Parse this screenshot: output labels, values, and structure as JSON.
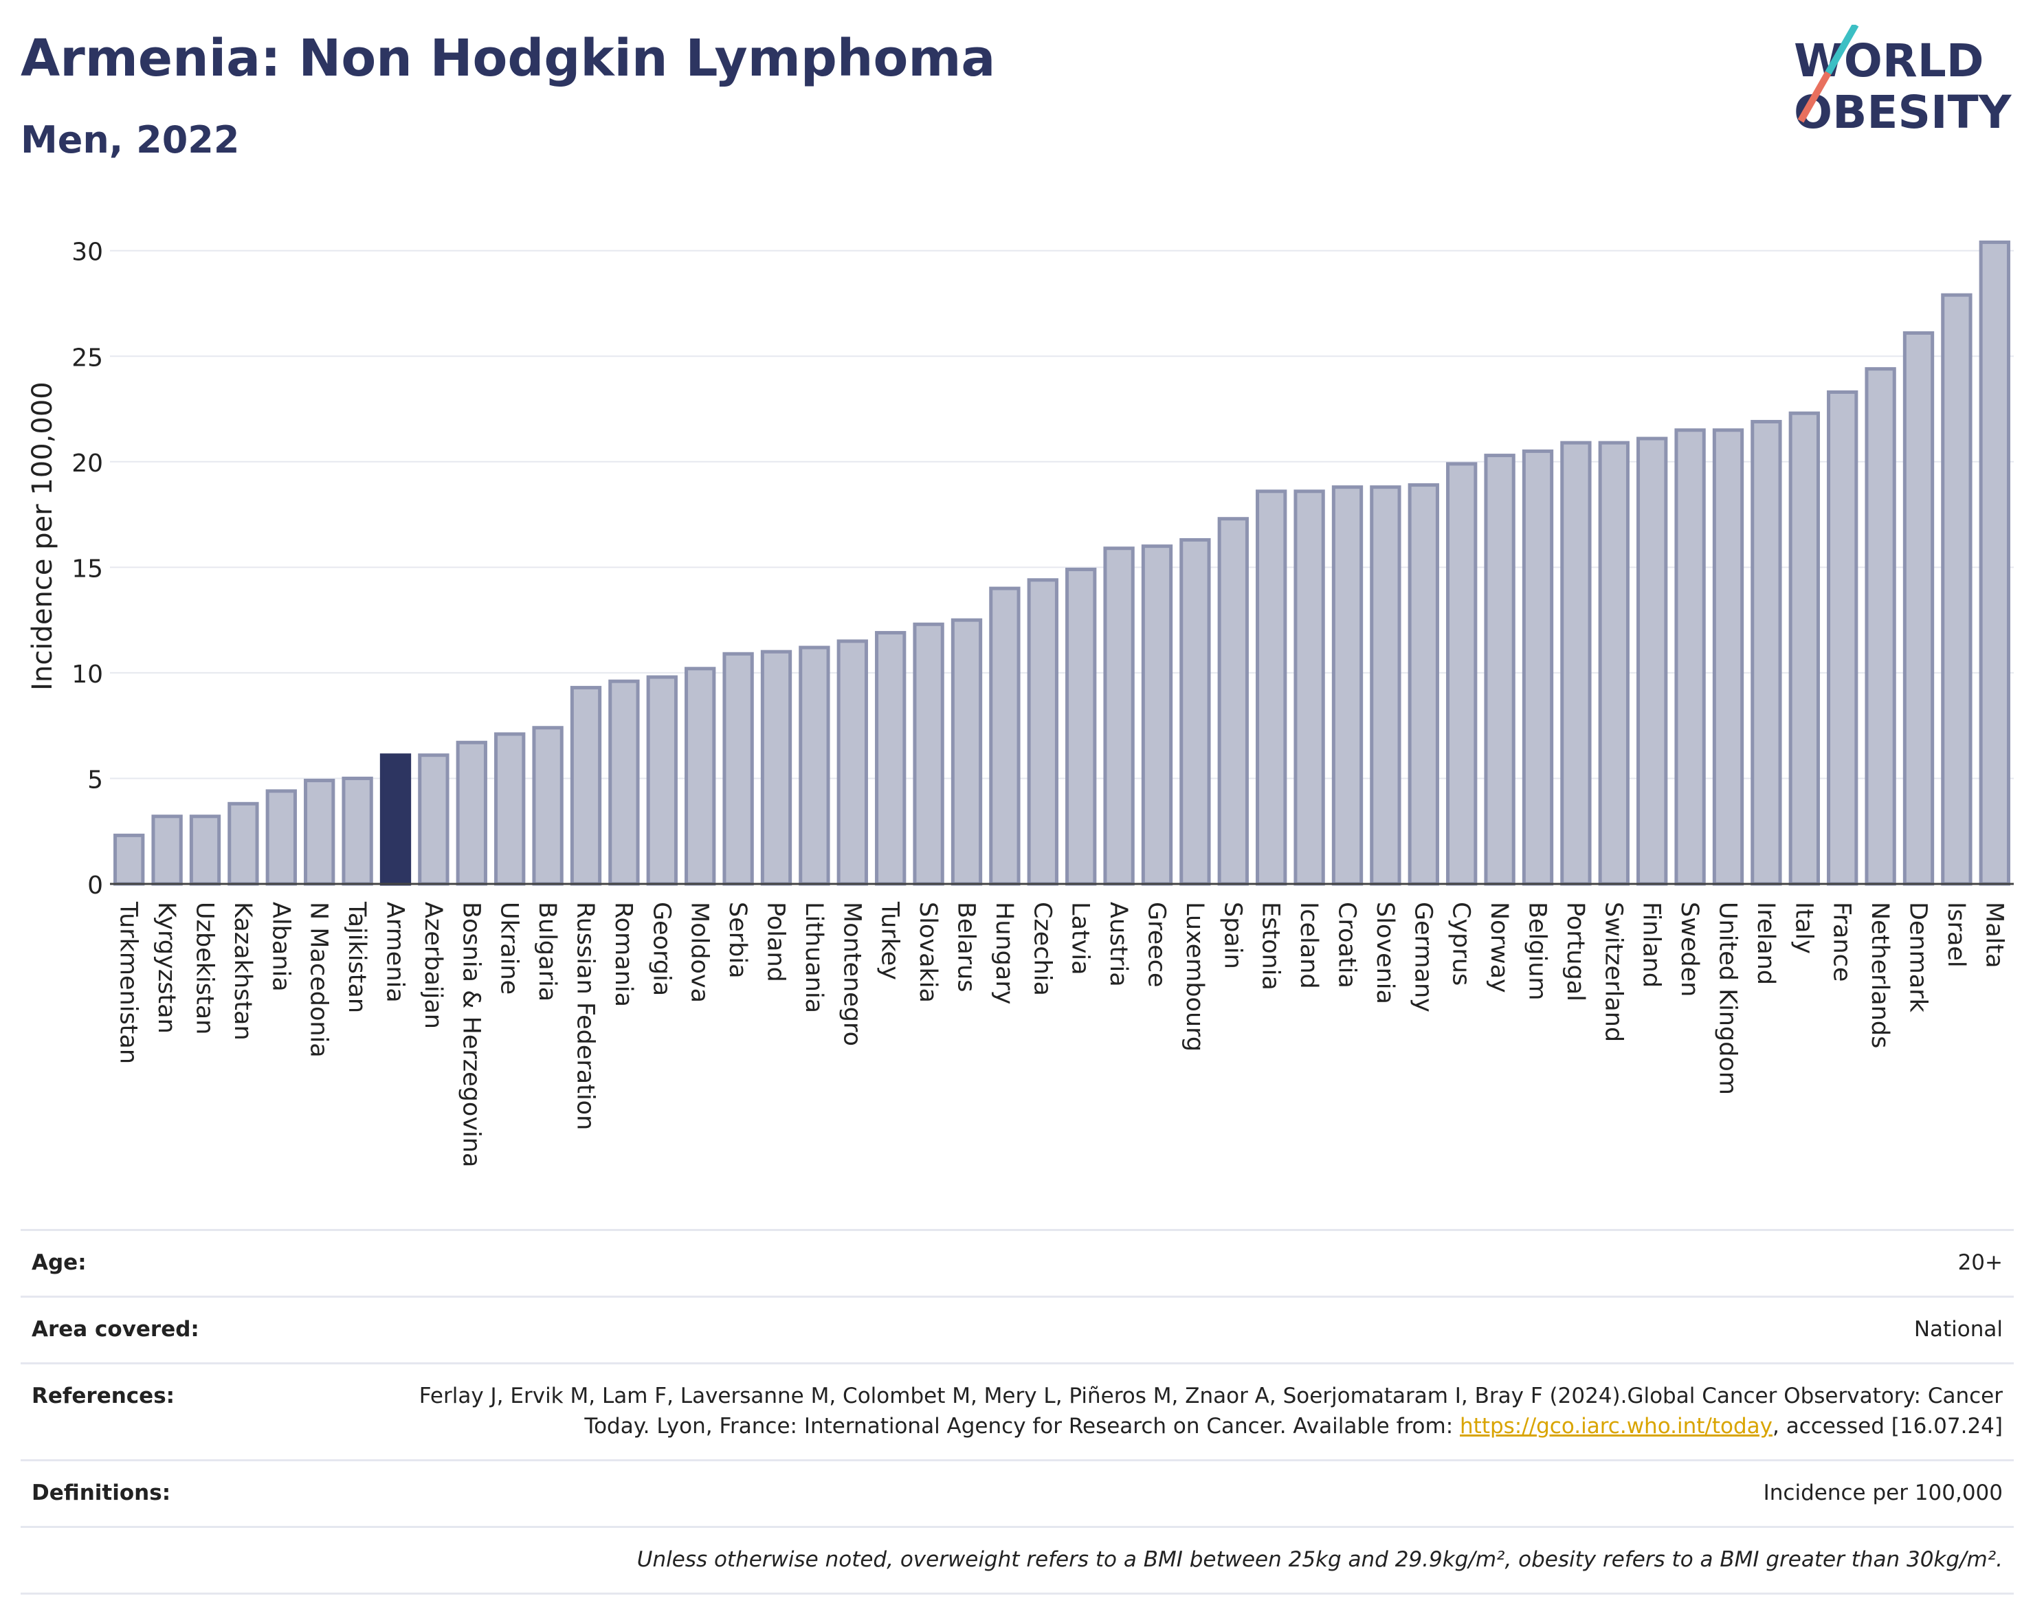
{
  "header": {
    "title": "Armenia: Non Hodgkin Lymphoma",
    "subtitle": "Men, 2022"
  },
  "logo": {
    "line1": "WORLD",
    "line2": "OBESITY"
  },
  "colors": {
    "highlight": "#2d3561",
    "bar": "#bcc0d0",
    "bar_stroke": "#8d93b0",
    "grid": "#e6e8ef",
    "logo_teal": "#3cbfc4",
    "logo_coral": "#e8705e"
  },
  "chart_data": {
    "type": "bar",
    "ylabel": "Incidence per 100,000",
    "ylim": [
      0,
      31
    ],
    "yticks": [
      0,
      5,
      10,
      15,
      20,
      25,
      30
    ],
    "highlight": "Armenia",
    "categories": [
      "Turkmenistan",
      "Kyrgyzstan",
      "Uzbekistan",
      "Kazakhstan",
      "Albania",
      "N Macedonia",
      "Tajikistan",
      "Armenia",
      "Azerbaijan",
      "Bosnia & Herzegovina",
      "Ukraine",
      "Bulgaria",
      "Russian Federation",
      "Romania",
      "Georgia",
      "Moldova",
      "Serbia",
      "Poland",
      "Lithuania",
      "Montenegro",
      "Turkey",
      "Slovakia",
      "Belarus",
      "Hungary",
      "Czechia",
      "Latvia",
      "Austria",
      "Greece",
      "Luxembourg",
      "Spain",
      "Estonia",
      "Iceland",
      "Croatia",
      "Slovenia",
      "Germany",
      "Cyprus",
      "Norway",
      "Belgium",
      "Portugal",
      "Switzerland",
      "Finland",
      "Sweden",
      "United Kingdom",
      "Ireland",
      "Italy",
      "France",
      "Netherlands",
      "Denmark",
      "Israel",
      "Malta"
    ],
    "values": [
      2.3,
      3.2,
      3.2,
      3.8,
      4.4,
      4.9,
      5.0,
      6.1,
      6.1,
      6.7,
      7.1,
      7.4,
      9.3,
      9.6,
      9.8,
      10.2,
      10.9,
      11.0,
      11.2,
      11.5,
      11.9,
      12.3,
      12.5,
      14.0,
      14.4,
      14.9,
      15.9,
      16.0,
      16.3,
      17.3,
      18.6,
      18.6,
      18.8,
      18.8,
      18.9,
      19.9,
      20.3,
      20.5,
      20.9,
      20.9,
      21.1,
      21.5,
      21.5,
      21.9,
      22.3,
      23.3,
      24.4,
      26.1,
      27.9,
      30.4
    ]
  },
  "info": {
    "age_label": "Age:",
    "age_value": "20+",
    "area_label": "Area covered:",
    "area_value": "National",
    "ref_label": "References:",
    "ref_text": "Ferlay J, Ervik M, Lam F, Laversanne M, Colombet M, Mery L, Piñeros M, Znaor A, Soerjomataram I, Bray F (2024).Global Cancer Observatory: Cancer Today. Lyon, France: International Agency for Research on Cancer. Available from: ",
    "ref_link": "https://gco.iarc.who.int/today",
    "ref_tail": ", accessed [16.07.24]",
    "def_label": "Definitions:",
    "def_value": "Incidence per 100,000",
    "note": "Unless otherwise noted, overweight refers to a BMI between 25kg and 29.9kg/m², obesity refers to a BMI greater than 30kg/m²."
  }
}
